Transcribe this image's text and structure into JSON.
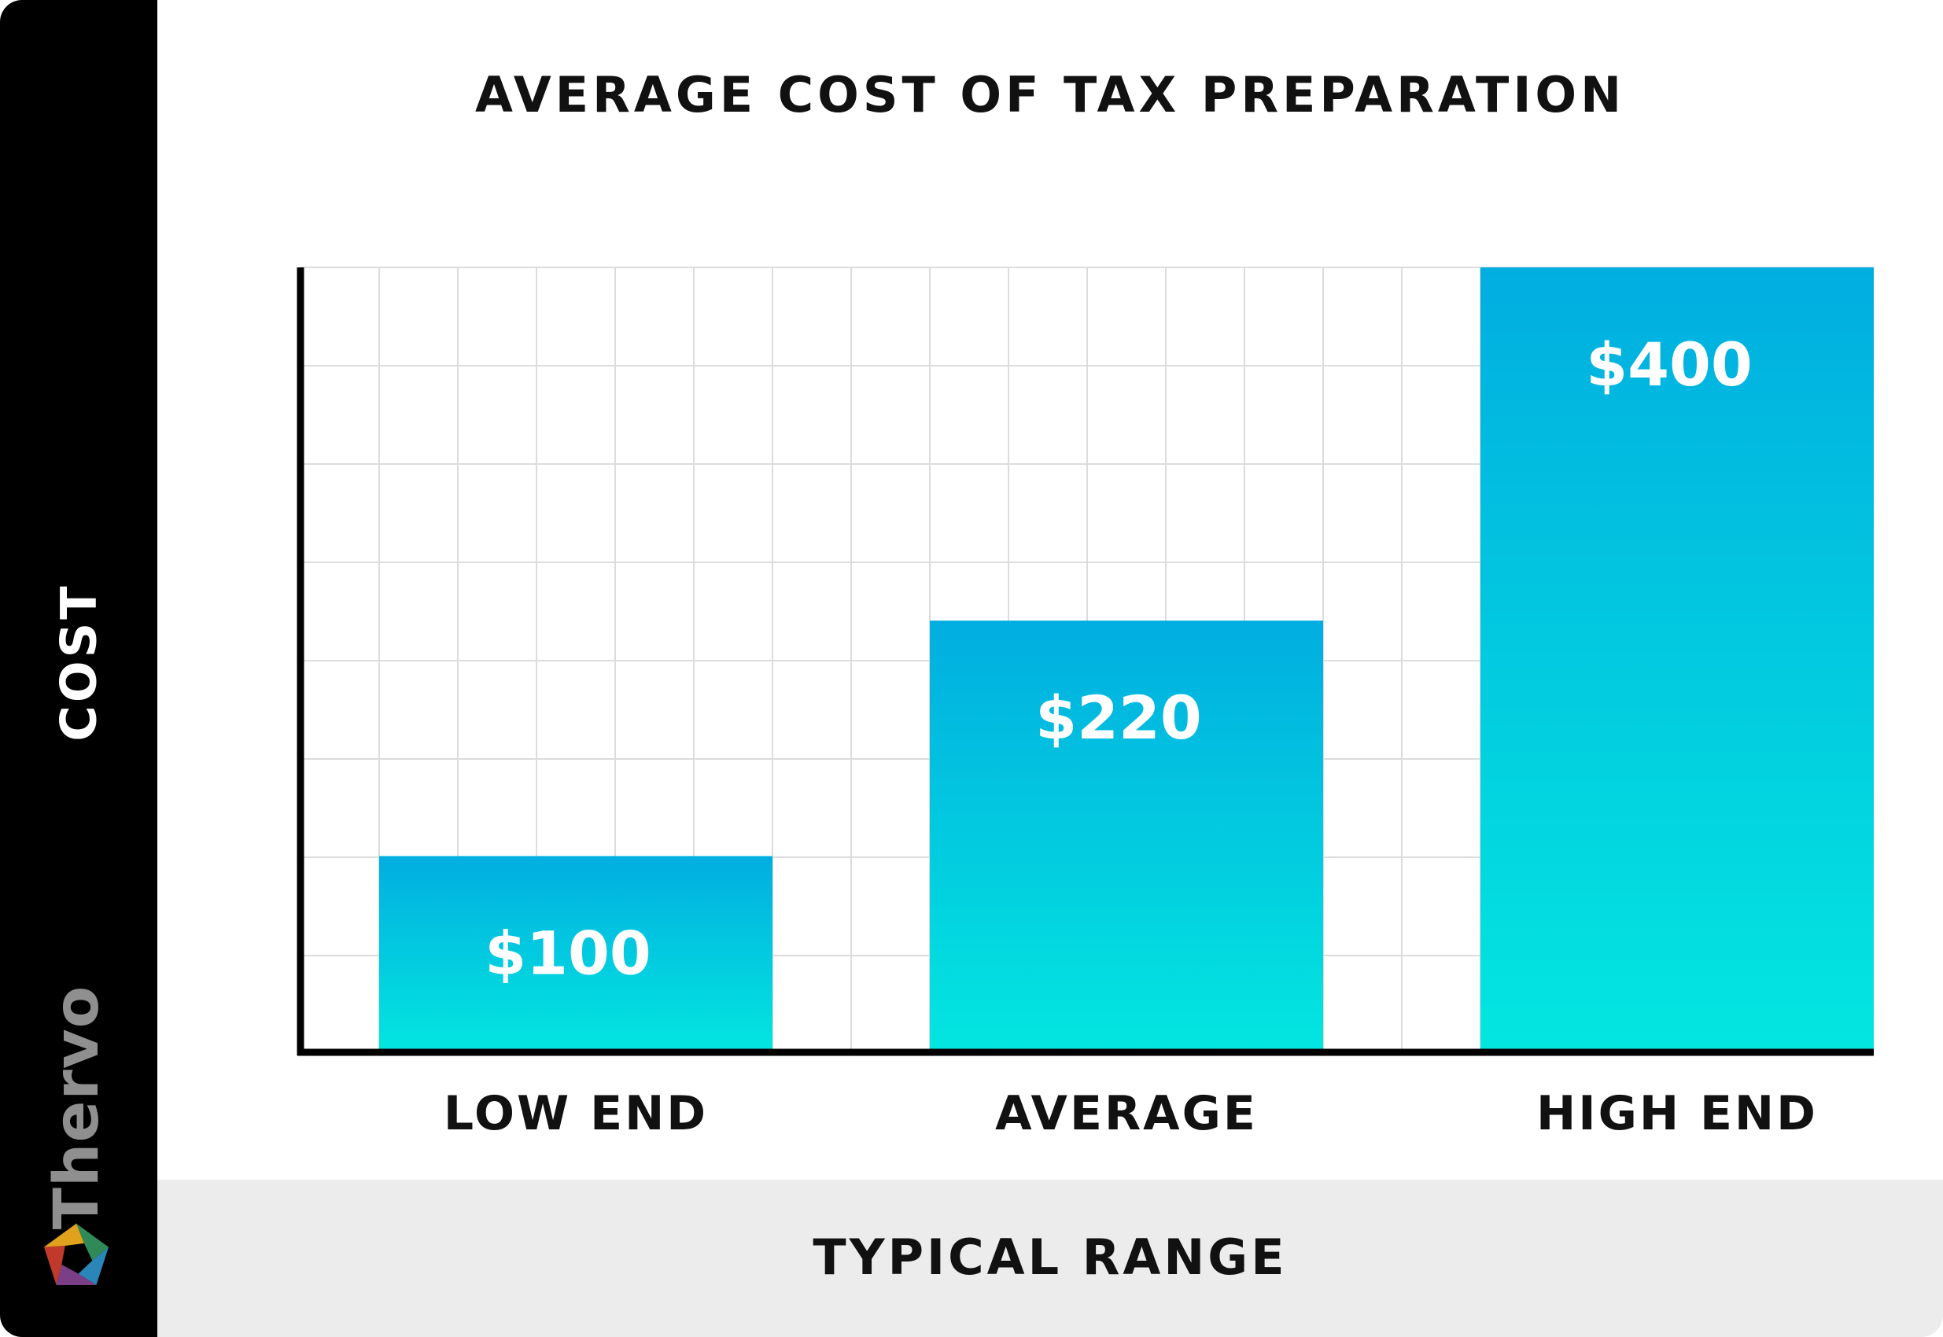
{
  "chart_data": {
    "type": "bar",
    "title": "AVERAGE COST OF TAX PREPARATION",
    "xlabel": "TYPICAL RANGE",
    "ylabel": "COST",
    "categories": [
      "LOW END",
      "AVERAGE",
      "HIGH END"
    ],
    "values": [
      100,
      220,
      400
    ],
    "value_labels": [
      "$100",
      "$220",
      "$400"
    ],
    "ylim": [
      0,
      400
    ],
    "grid": true,
    "bar_gradient": [
      "#01aee0",
      "#03e6e0"
    ]
  },
  "brand": {
    "name": "Thervo",
    "logo_colors": [
      "#2f8a57",
      "#2a86b8",
      "#7a3f86",
      "#c0392b",
      "#e0a21c"
    ]
  }
}
